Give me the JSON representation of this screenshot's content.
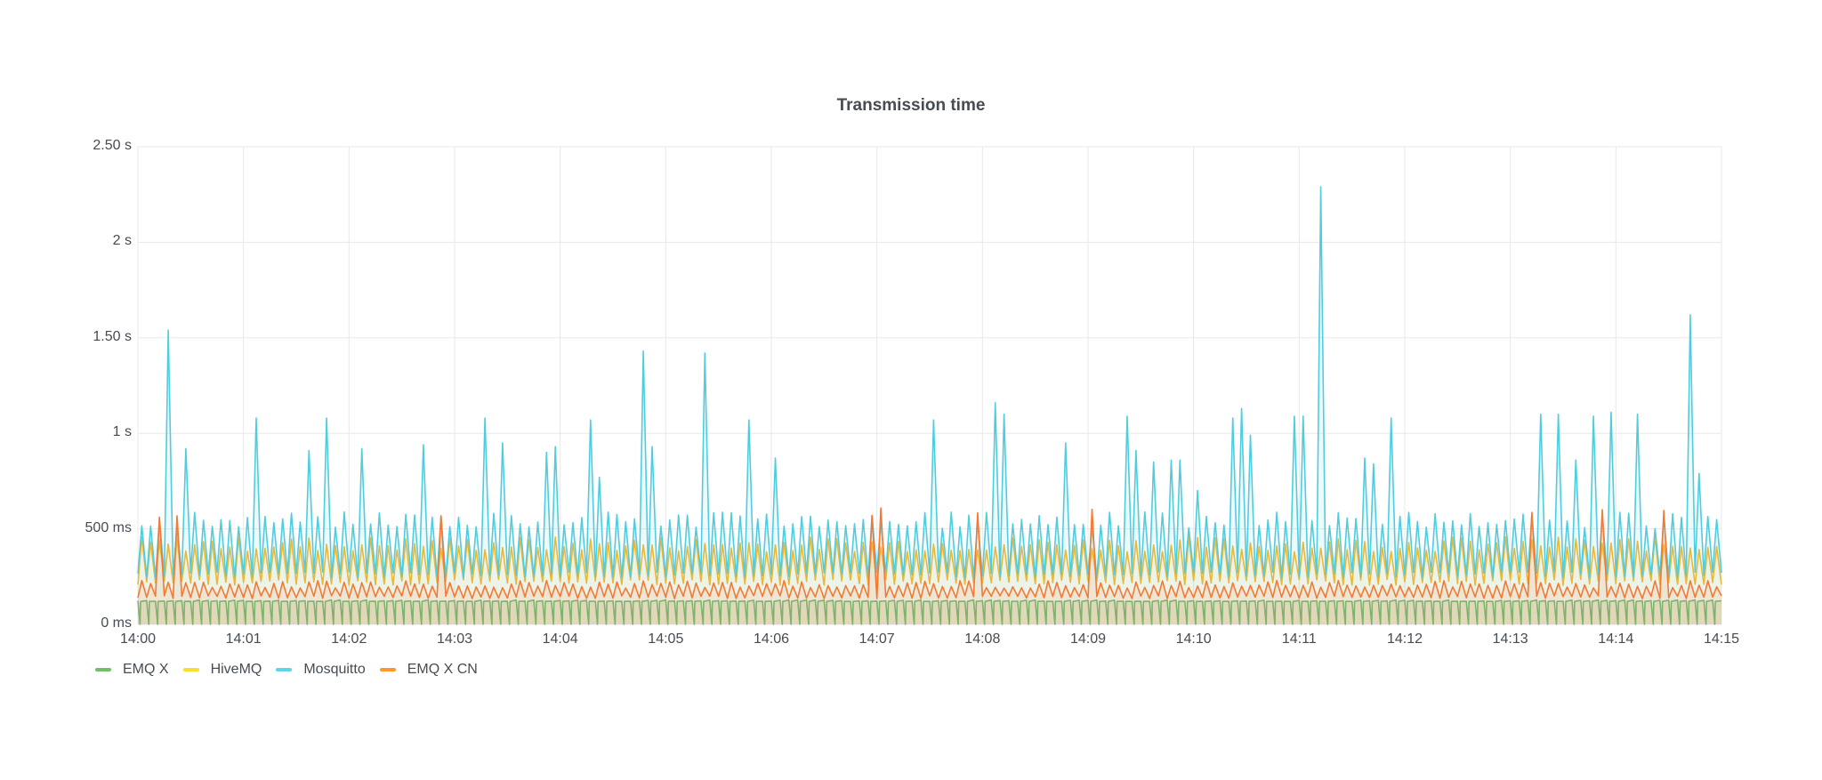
{
  "chart": {
    "title": "Transmission time",
    "y_ticks": [
      {
        "label": "2.50 s",
        "value": 2500
      },
      {
        "label": "2 s",
        "value": 2000
      },
      {
        "label": "1.50 s",
        "value": 1500
      },
      {
        "label": "1 s",
        "value": 1000
      },
      {
        "label": "500 ms",
        "value": 500
      },
      {
        "label": "0 ms",
        "value": 0
      }
    ],
    "x_ticks": [
      "14:00",
      "14:01",
      "14:02",
      "14:03",
      "14:04",
      "14:05",
      "14:06",
      "14:07",
      "14:08",
      "14:09",
      "14:10",
      "14:11",
      "14:12",
      "14:13",
      "14:14",
      "14:15"
    ],
    "legend": [
      {
        "name": "EMQ X",
        "color": "#73bf69"
      },
      {
        "name": "HiveMQ",
        "color": "#fade2a"
      },
      {
        "name": "Mosquitto",
        "color": "#5ad8e6"
      },
      {
        "name": "EMQ X CN",
        "color": "#ff9830"
      }
    ],
    "colors": {
      "emqx": "#7eb26d",
      "hivemq": "#eab839",
      "mosquitto": "#4fcde0",
      "emqxcn": "#f47a33",
      "grid": "#e8e8e8",
      "text": "#464c54"
    }
  },
  "chart_data": {
    "type": "line",
    "title": "Transmission time",
    "xlabel": "",
    "ylabel": "",
    "ylim": [
      0,
      2500
    ],
    "y_unit": "ms",
    "x_range": [
      "14:00",
      "14:15"
    ],
    "grid": true,
    "legend_position": "bottom-left",
    "series": [
      {
        "name": "EMQ X",
        "baseline_ms": 120,
        "spike_ms": 130,
        "description": "flat ~120ms with periodic drops to 0"
      },
      {
        "name": "HiveMQ",
        "baseline_ms": 215,
        "spike_ms": 420,
        "description": "baseline ~210-230ms, periodic spikes to ~400-450ms"
      },
      {
        "name": "Mosquitto",
        "baseline_ms": 260,
        "spike_ms": 550,
        "description": "baseline ~250ms, periodic spikes ~550ms, occasional outliers up to 2.29s",
        "outliers": [
          {
            "time": "14:00:13",
            "value_ms": 1540
          },
          {
            "time": "14:00:23",
            "value_ms": 920
          },
          {
            "time": "14:01:03",
            "value_ms": 1080
          },
          {
            "time": "14:01:33",
            "value_ms": 910
          },
          {
            "time": "14:01:43",
            "value_ms": 1080
          },
          {
            "time": "14:02:03",
            "value_ms": 920
          },
          {
            "time": "14:02:38",
            "value_ms": 940
          },
          {
            "time": "14:03:17",
            "value_ms": 1080
          },
          {
            "time": "14:03:23",
            "value_ms": 950
          },
          {
            "time": "14:03:48",
            "value_ms": 900
          },
          {
            "time": "14:03:53",
            "value_ms": 930
          },
          {
            "time": "14:04:13",
            "value_ms": 1070
          },
          {
            "time": "14:04:18",
            "value_ms": 770
          },
          {
            "time": "14:04:43",
            "value_ms": 1430
          },
          {
            "time": "14:04:48",
            "value_ms": 930
          },
          {
            "time": "14:05:18",
            "value_ms": 1420
          },
          {
            "time": "14:05:43",
            "value_ms": 1070
          },
          {
            "time": "14:05:58",
            "value_ms": 870
          },
          {
            "time": "14:07:28",
            "value_ms": 1070
          },
          {
            "time": "14:08:03",
            "value_ms": 1160
          },
          {
            "time": "14:08:08",
            "value_ms": 1100
          },
          {
            "time": "14:08:43",
            "value_ms": 950
          },
          {
            "time": "14:09:18",
            "value_ms": 1090
          },
          {
            "time": "14:09:23",
            "value_ms": 910
          },
          {
            "time": "14:09:33",
            "value_ms": 850
          },
          {
            "time": "14:09:43",
            "value_ms": 860
          },
          {
            "time": "14:09:48",
            "value_ms": 860
          },
          {
            "time": "14:09:58",
            "value_ms": 700
          },
          {
            "time": "14:10:18",
            "value_ms": 1080
          },
          {
            "time": "14:10:23",
            "value_ms": 1090
          },
          {
            "time": "14:10:27",
            "value_ms": 1130
          },
          {
            "time": "14:10:31",
            "value_ms": 990
          },
          {
            "time": "14:10:53",
            "value_ms": 1090
          },
          {
            "time": "14:10:58",
            "value_ms": 1090
          },
          {
            "time": "14:11:08",
            "value_ms": 2290
          },
          {
            "time": "14:11:33",
            "value_ms": 870
          },
          {
            "time": "14:11:38",
            "value_ms": 840
          },
          {
            "time": "14:11:48",
            "value_ms": 1080
          },
          {
            "time": "14:13:13",
            "value_ms": 1100
          },
          {
            "time": "14:13:23",
            "value_ms": 1100
          },
          {
            "time": "14:13:33",
            "value_ms": 860
          },
          {
            "time": "14:13:43",
            "value_ms": 1090
          },
          {
            "time": "14:13:53",
            "value_ms": 1110
          },
          {
            "time": "14:14:08",
            "value_ms": 1100
          },
          {
            "time": "14:14:38",
            "value_ms": 1620
          },
          {
            "time": "14:14:43",
            "value_ms": 790
          }
        ]
      },
      {
        "name": "EMQ X CN",
        "baseline_ms": 140,
        "spike_ms": 210,
        "description": "baseline ~140ms, periodic spikes ~210ms, occasional spikes to ~600ms"
      }
    ]
  }
}
